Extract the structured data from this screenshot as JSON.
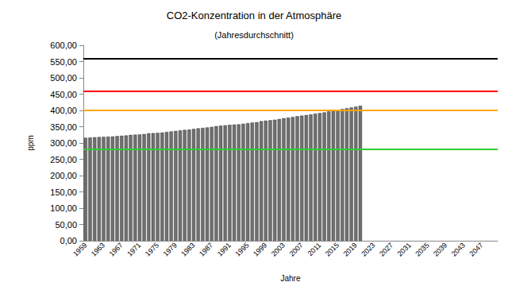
{
  "chart_data": {
    "type": "bar",
    "title": "CO2-Konzentration in der Atmosphäre",
    "subtitle": "(Jahresdurchschnitt)",
    "x_label": "Jahre",
    "y_label": "ppm",
    "categories": [
      "1959",
      null,
      null,
      null,
      "1963",
      null,
      null,
      null,
      "1967",
      null,
      null,
      null,
      "1971",
      null,
      null,
      null,
      "1975",
      null,
      null,
      null,
      "1979",
      null,
      null,
      null,
      "1983",
      null,
      null,
      null,
      "1987",
      null,
      null,
      null,
      "1991",
      null,
      null,
      null,
      "1995",
      null,
      null,
      null,
      "1999",
      null,
      null,
      null,
      "2003",
      null,
      null,
      null,
      "2007",
      null,
      null,
      null,
      "2011",
      null,
      null,
      null,
      "2015",
      null,
      null,
      null,
      "2019",
      null,
      null,
      null,
      "2023",
      null,
      null,
      null,
      "2027",
      null,
      null,
      null,
      "2031",
      null,
      null,
      null,
      "2035",
      null,
      null,
      null,
      "2039",
      null,
      null,
      null,
      "2043",
      null,
      null,
      null,
      "2047",
      null,
      null,
      null
    ],
    "values": [
      315.98,
      316.91,
      317.64,
      318.45,
      318.99,
      319.62,
      320.04,
      321.37,
      322.18,
      323.05,
      324.62,
      325.68,
      326.32,
      327.46,
      329.68,
      330.19,
      331.12,
      332.03,
      333.84,
      335.41,
      336.84,
      338.76,
      340.12,
      341.48,
      343.15,
      344.85,
      346.35,
      347.61,
      349.31,
      351.69,
      353.2,
      354.45,
      355.7,
      356.54,
      357.21,
      358.96,
      360.97,
      362.74,
      363.88,
      366.84,
      368.54,
      369.71,
      371.32,
      373.45,
      375.98,
      377.7,
      379.98,
      382.09,
      384.02,
      385.83,
      387.64,
      390.1,
      391.85,
      394.06,
      396.74,
      398.81,
      401.01,
      404.41,
      406.76,
      408.72,
      411.66,
      414.24,
      null,
      null,
      null,
      null,
      null,
      null,
      null,
      null,
      null,
      null,
      null,
      null,
      null,
      null,
      null,
      null,
      null,
      null,
      null,
      null,
      null,
      null,
      null,
      null,
      null,
      null,
      null,
      null,
      null,
      null
    ],
    "color": "#707070",
    "hlines": [
      {
        "y": 560,
        "color": "#000000"
      },
      {
        "y": 460,
        "color": "#ff0000"
      },
      {
        "y": 400,
        "color": "#ffa500"
      },
      {
        "y": 280,
        "color": "#33cc33"
      }
    ],
    "ylim": [
      0,
      600
    ],
    "yticks": [
      {
        "value": 0,
        "label": "0,00"
      },
      {
        "value": 50,
        "label": "50,00"
      },
      {
        "value": 100,
        "label": "100,00"
      },
      {
        "value": 150,
        "label": "150,00"
      },
      {
        "value": 200,
        "label": "200,00"
      },
      {
        "value": 250,
        "label": "250,00"
      },
      {
        "value": 300,
        "label": "300,00"
      },
      {
        "value": 350,
        "label": "350,00"
      },
      {
        "value": 400,
        "label": "400,00"
      },
      {
        "value": 450,
        "label": "450,00"
      },
      {
        "value": 500,
        "label": "500,00"
      },
      {
        "value": 550,
        "label": "550,00"
      },
      {
        "value": 600,
        "label": "600,00"
      }
    ],
    "grid": false
  }
}
